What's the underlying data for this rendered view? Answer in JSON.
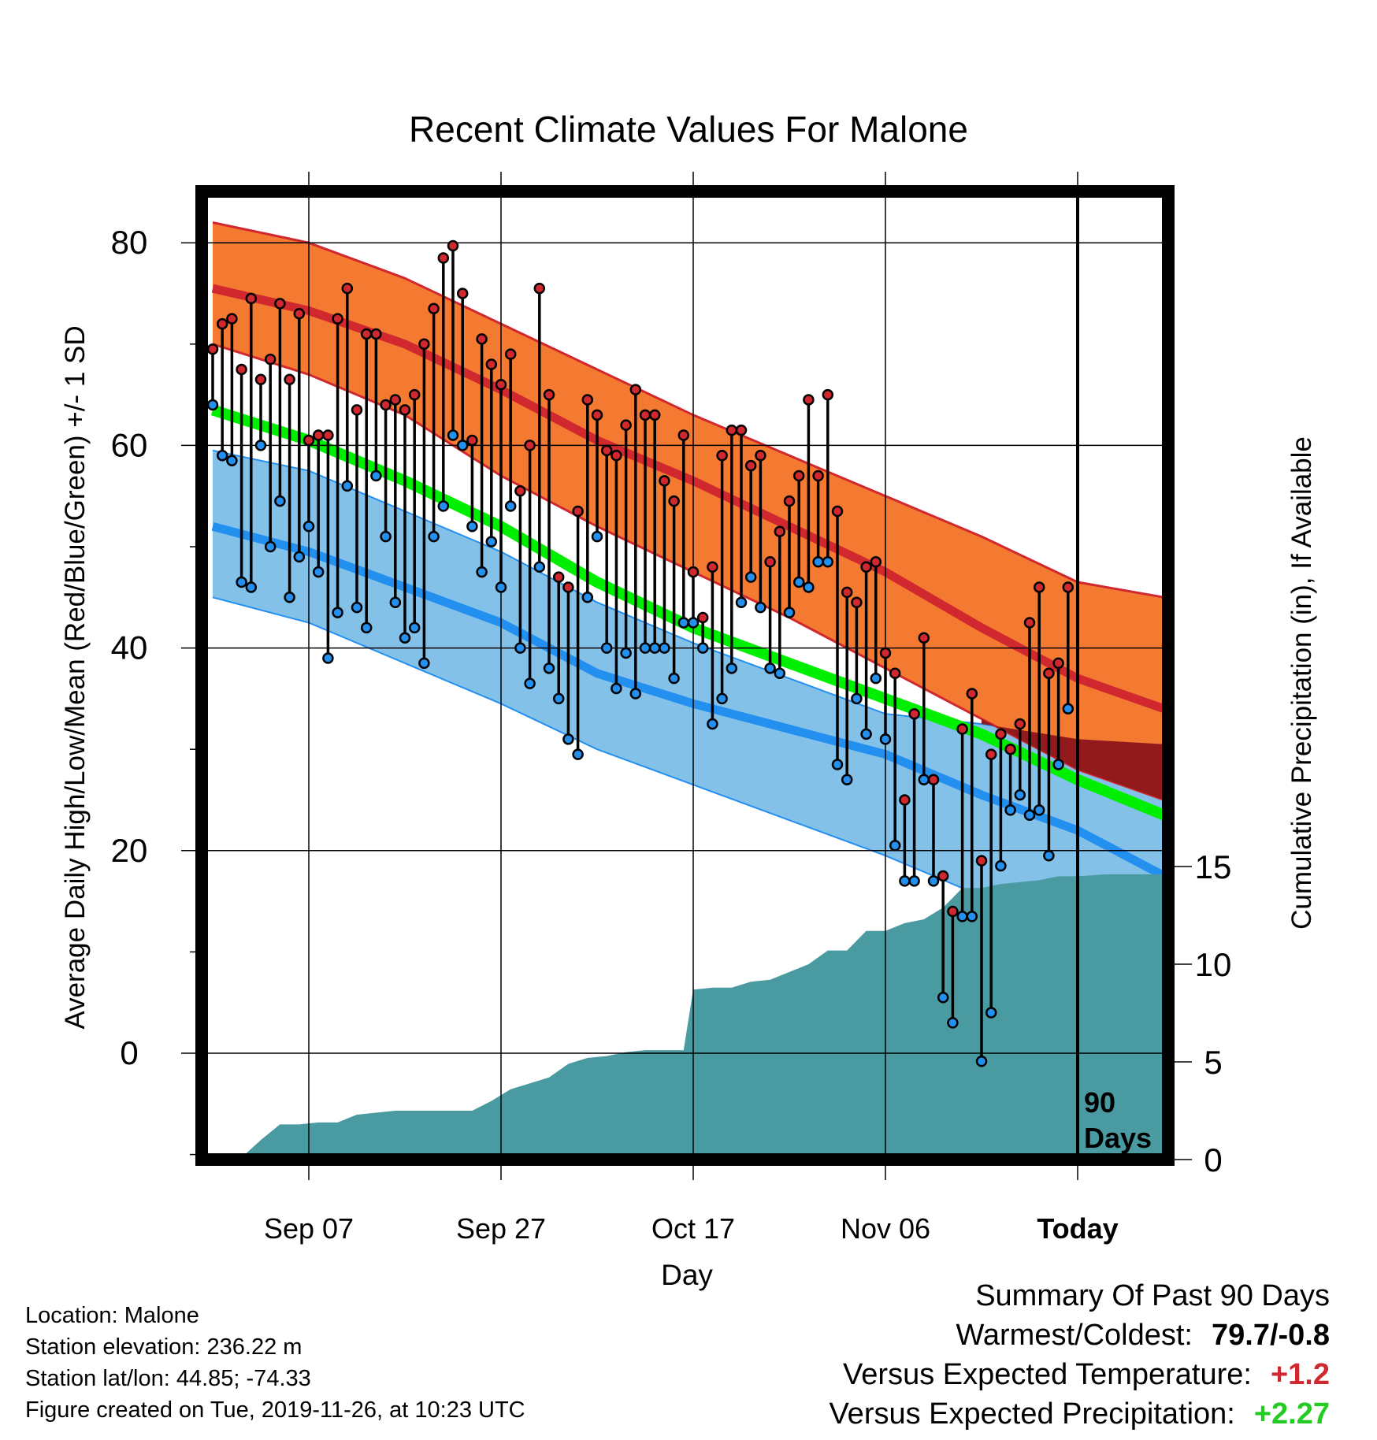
{
  "chart_data": {
    "type": "line",
    "title": "Recent Climate Values For Malone",
    "xlabel": "Day",
    "ylabel": "Average Daily High/Low/Mean (Red/Blue/Green) +/- 1 SD",
    "y2label": "Cumulative Precipitation (in), If Available",
    "ylim": [
      -10,
      85
    ],
    "y2lim": [
      0,
      28
    ],
    "y_ticks": [
      "80",
      "60",
      "40",
      "20",
      "0"
    ],
    "y2_ticks": [
      "15",
      "10",
      "5",
      "0"
    ],
    "x_ticks": [
      {
        "day": 10,
        "label": "Sep 07"
      },
      {
        "day": 30,
        "label": "Sep 27"
      },
      {
        "day": 50,
        "label": "Oct 17"
      },
      {
        "day": 70,
        "label": "Nov 06"
      },
      {
        "day": 90,
        "label": "Today"
      }
    ],
    "today_marker": {
      "day": 90,
      "label_line1": "90",
      "label_line2": "Days"
    },
    "grid": true,
    "colors": {
      "high_band": "#f47a32",
      "high_mean": "#d0282e",
      "low_band": "#84c1e9",
      "low_mean": "#2390f0",
      "mean": "#00ee00",
      "overlap": "#931a1c",
      "precip": "#4a9aa2",
      "high_point": "#d0282e",
      "low_point": "#2390f0"
    },
    "normals": {
      "x": [
        0,
        10,
        20,
        30,
        40,
        50,
        60,
        70,
        80,
        90,
        99
      ],
      "high_plus_sd": [
        82.0,
        80.0,
        76.5,
        72.0,
        67.5,
        63.0,
        59.0,
        55.0,
        51.0,
        46.5,
        45.0
      ],
      "high_mean": [
        75.5,
        73.3,
        70.0,
        65.5,
        60.5,
        56.5,
        52.0,
        47.5,
        42.0,
        37.0,
        34.0
      ],
      "high_minus_sd": [
        70.0,
        67.0,
        63.0,
        57.0,
        52.0,
        47.5,
        43.0,
        38.0,
        33.0,
        28.0,
        25.0
      ],
      "mean": [
        63.5,
        60.5,
        56.5,
        52.0,
        46.5,
        42.0,
        38.5,
        35.0,
        31.5,
        27.0,
        23.5
      ],
      "low_plus_sd": [
        59.5,
        57.5,
        53.5,
        49.5,
        44.5,
        40.5,
        37.0,
        33.5,
        32.5,
        31.0,
        30.5
      ],
      "low_mean": [
        52.0,
        49.5,
        46.0,
        42.5,
        37.5,
        34.5,
        32.0,
        29.5,
        25.5,
        22.0,
        17.5
      ],
      "low_minus_sd": [
        45.0,
        42.5,
        38.5,
        34.5,
        30.0,
        26.5,
        23.0,
        19.5,
        15.5,
        15.5,
        15.5
      ]
    },
    "observed": {
      "x": [
        0,
        1,
        2,
        3,
        4,
        5,
        6,
        7,
        8,
        9,
        10,
        11,
        12,
        13,
        14,
        15,
        16,
        17,
        18,
        19,
        20,
        21,
        22,
        23,
        24,
        25,
        26,
        27,
        28,
        29,
        30,
        31,
        32,
        33,
        34,
        35,
        36,
        37,
        38,
        39,
        40,
        41,
        42,
        43,
        44,
        45,
        46,
        47,
        48,
        49,
        50,
        51,
        52,
        53,
        54,
        55,
        56,
        57,
        58,
        59,
        60,
        61,
        62,
        63,
        64,
        65,
        66,
        67,
        68,
        69,
        70,
        71,
        72,
        73,
        74,
        75,
        76,
        77,
        78,
        79,
        80,
        81,
        82,
        83,
        84,
        85,
        86,
        87,
        88,
        89,
        90
      ],
      "high": [
        69.5,
        72.0,
        72.5,
        67.5,
        74.5,
        66.5,
        68.5,
        74.0,
        66.5,
        73.0,
        60.5,
        61.0,
        61.0,
        72.5,
        75.5,
        63.5,
        71.0,
        71.0,
        64.0,
        64.5,
        63.5,
        65.0,
        70.0,
        73.5,
        78.5,
        79.7,
        75.0,
        60.5,
        70.5,
        68.0,
        66.0,
        69.0,
        55.5,
        60.0,
        75.5,
        65.0,
        47.0,
        46.0,
        53.5,
        64.5,
        63.0,
        59.5,
        59.0,
        62.0,
        65.5,
        63.0,
        63.0,
        56.5,
        54.5,
        61.0,
        47.5,
        43.0,
        48.0,
        59.0,
        61.5,
        61.5,
        58.0,
        59.0,
        48.5,
        51.5,
        54.5,
        57.0,
        64.5,
        57.0,
        65.0,
        53.5,
        45.5,
        44.5,
        48.0,
        48.5,
        39.5,
        37.5,
        25.0,
        33.5,
        41.0,
        27.0,
        17.5,
        14.0,
        32.0,
        35.5,
        19.0,
        29.5,
        31.5,
        30.0,
        32.5,
        42.5,
        46.0,
        37.5,
        38.5,
        46.0,
        null
      ],
      "low": [
        64.0,
        59.0,
        58.5,
        46.5,
        46.0,
        60.0,
        50.0,
        54.5,
        45.0,
        49.0,
        52.0,
        47.5,
        39.0,
        43.5,
        56.0,
        44.0,
        42.0,
        57.0,
        51.0,
        44.5,
        41.0,
        42.0,
        38.5,
        51.0,
        54.0,
        61.0,
        60.0,
        52.0,
        47.5,
        50.5,
        46.0,
        54.0,
        40.0,
        36.5,
        48.0,
        38.0,
        35.0,
        31.0,
        29.5,
        45.0,
        51.0,
        40.0,
        36.0,
        39.5,
        35.5,
        40.0,
        40.0,
        40.0,
        37.0,
        42.5,
        42.5,
        40.0,
        32.5,
        35.0,
        38.0,
        44.5,
        47.0,
        44.0,
        38.0,
        37.5,
        43.5,
        46.5,
        46.0,
        48.5,
        48.5,
        28.5,
        27.0,
        35.0,
        31.5,
        37.0,
        31.0,
        20.5,
        17.0,
        17.0,
        27.0,
        17.0,
        5.5,
        3.0,
        13.5,
        13.5,
        -0.8,
        4.0,
        18.5,
        24.0,
        25.5,
        23.5,
        24.0,
        19.5,
        28.5,
        34.0,
        null
      ]
    },
    "precip": {
      "x": [
        0,
        3,
        5,
        7,
        9,
        11,
        13,
        15,
        17,
        19,
        21,
        23,
        25,
        27,
        29,
        31,
        33,
        35,
        37,
        39,
        41,
        43,
        45,
        47,
        49,
        50,
        52,
        54,
        56,
        58,
        60,
        62,
        64,
        66,
        68,
        70,
        72,
        74,
        76,
        78,
        80,
        82,
        84,
        86,
        88,
        90,
        93,
        96,
        99
      ],
      "cum": [
        0.0,
        0.1,
        1.0,
        1.8,
        1.8,
        1.9,
        1.9,
        2.3,
        2.4,
        2.5,
        2.5,
        2.5,
        2.5,
        2.5,
        3.0,
        3.6,
        3.9,
        4.2,
        4.9,
        5.2,
        5.3,
        5.5,
        5.6,
        5.6,
        5.6,
        8.7,
        8.8,
        8.8,
        9.1,
        9.2,
        9.6,
        10.0,
        10.7,
        10.7,
        11.7,
        11.7,
        12.1,
        12.3,
        12.9,
        13.9,
        13.9,
        14.1,
        14.2,
        14.3,
        14.5,
        14.5,
        14.6,
        14.6,
        14.6
      ]
    }
  },
  "info": {
    "location": "Location: Malone",
    "elevation": "Station elevation: 236.22 m",
    "latlon": "Station lat/lon: 44.85; -74.33",
    "created": "Figure created on Tue, 2019-11-26, at 10:23 UTC"
  },
  "summary": {
    "heading": "Summary Of Past 90 Days",
    "warm_cold_label": "Warmest/Coldest:",
    "warm_cold_value": "79.7/-0.8",
    "temp_label": "Versus Expected Temperature:",
    "temp_value": "+1.2",
    "temp_color": "#d0282e",
    "precip_label": "Versus Expected Precipitation:",
    "precip_value": "+2.27",
    "precip_color": "#22cc22"
  }
}
